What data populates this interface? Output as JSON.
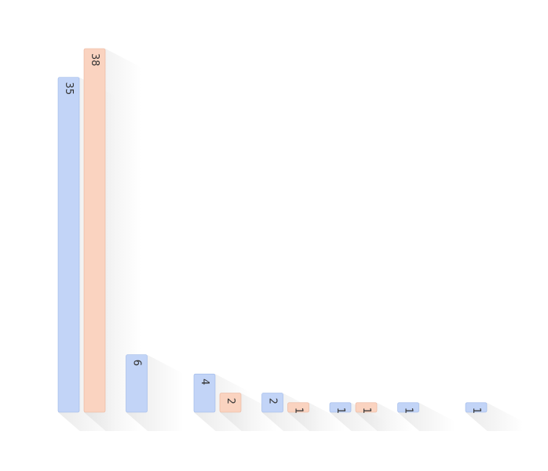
{
  "chart_data": {
    "type": "bar",
    "categories": [
      "",
      "",
      "",
      "",
      "",
      "",
      ""
    ],
    "series": [
      {
        "values": [
          35,
          6,
          4,
          2,
          1,
          1,
          1
        ]
      },
      {
        "values": [
          38,
          null,
          2,
          1,
          1,
          null,
          null
        ]
      }
    ],
    "ylim": [
      0,
      38
    ],
    "grid": false,
    "legend": false,
    "colors": {
      "series_fill": [
        "#c2d4f7",
        "#fad3c0"
      ],
      "series_stroke": [
        "#9bb6e8",
        "#eab39a"
      ],
      "shadow": "#dcdcdc",
      "label": "#333333",
      "background": "#ffffff"
    }
  }
}
